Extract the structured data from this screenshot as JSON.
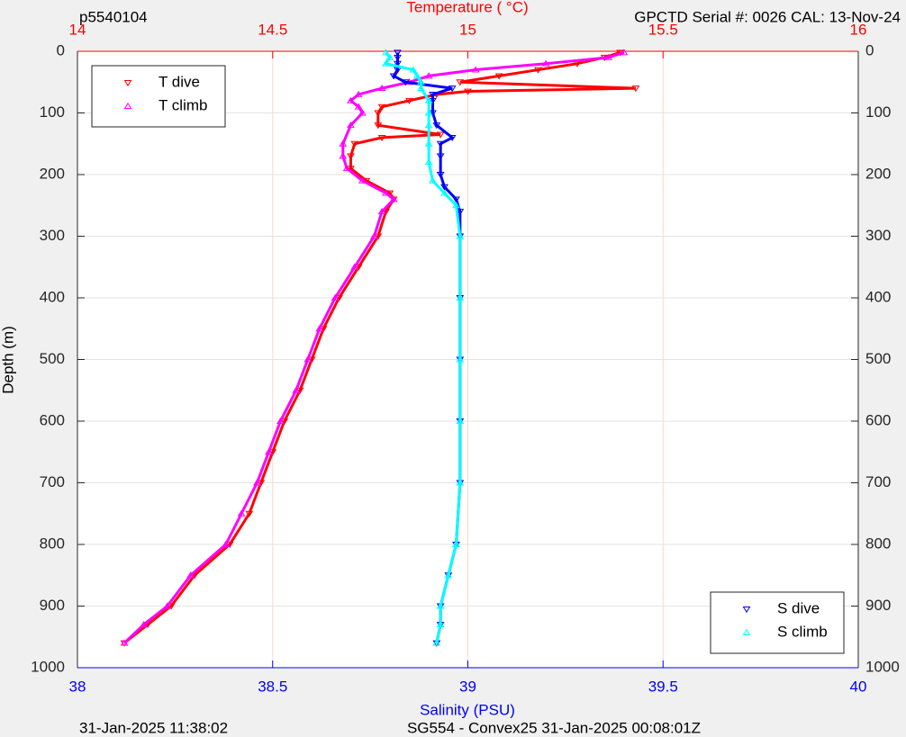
{
  "chart_data": {
    "type": "scatter",
    "title_left": "p5540104",
    "title_right": "GPCTD Serial #: 0026 CAL: 13-Nov-24",
    "x2_label": "Temperature (   °C)",
    "x_label": "Salinity (PSU)",
    "y_label": "Depth (m)",
    "footer_left": "31-Jan-2025 11:38:02",
    "footer_center": "SG554 - Convex25 31-Jan-2025 00:08:01Z",
    "xlim": [
      38,
      40
    ],
    "xticks": [
      38,
      38.5,
      39,
      39.5,
      40
    ],
    "x2lim": [
      14,
      16
    ],
    "x2ticks": [
      14,
      14.5,
      15,
      15.5,
      16
    ],
    "ylim": [
      0,
      1000
    ],
    "yticks": [
      0,
      100,
      200,
      300,
      400,
      500,
      600,
      700,
      800,
      900,
      1000
    ],
    "y_reversed": true,
    "grid": true,
    "x_axis_color": "#0000ff",
    "x2_axis_color": "#ff0000",
    "legend_x2": "northwest",
    "legend_x": "southeast",
    "series": [
      {
        "name": "T dive",
        "color": "#ff0000",
        "marker": "down",
        "axis": "x2",
        "y": [
          2,
          10,
          20,
          30,
          40,
          50,
          60,
          65,
          70,
          80,
          90,
          100,
          120,
          135,
          140,
          150,
          170,
          190,
          210,
          230,
          240,
          260,
          300,
          350,
          400,
          450,
          500,
          550,
          600,
          650,
          700,
          750,
          800,
          850,
          900,
          930,
          960
        ],
        "x": [
          15.39,
          15.35,
          15.28,
          15.18,
          15.08,
          14.98,
          15.43,
          15.0,
          14.92,
          14.85,
          14.78,
          14.77,
          14.77,
          14.93,
          14.78,
          14.71,
          14.7,
          14.7,
          14.74,
          14.8,
          14.81,
          14.79,
          14.77,
          14.72,
          14.67,
          14.63,
          14.6,
          14.57,
          14.53,
          14.5,
          14.47,
          14.44,
          14.39,
          14.3,
          14.24,
          14.18,
          14.12
        ]
      },
      {
        "name": "T climb",
        "color": "#ff00ff",
        "marker": "up",
        "axis": "x2",
        "y": [
          2,
          10,
          20,
          30,
          40,
          50,
          60,
          70,
          80,
          90,
          100,
          120,
          150,
          170,
          190,
          210,
          230,
          240,
          260,
          300,
          350,
          400,
          450,
          500,
          550,
          600,
          650,
          700,
          750,
          800,
          850,
          900,
          930,
          960
        ],
        "x": [
          15.4,
          15.36,
          15.2,
          15.02,
          14.9,
          14.85,
          14.78,
          14.72,
          14.7,
          14.72,
          14.73,
          14.7,
          14.68,
          14.68,
          14.69,
          14.73,
          14.79,
          14.81,
          14.78,
          14.76,
          14.71,
          14.66,
          14.62,
          14.59,
          14.56,
          14.52,
          14.49,
          14.46,
          14.42,
          14.38,
          14.29,
          14.23,
          14.17,
          14.12
        ]
      },
      {
        "name": "S dive",
        "color": "#0000ff",
        "marker": "down",
        "axis": "x",
        "y": [
          2,
          10,
          20,
          30,
          40,
          50,
          60,
          70,
          80,
          100,
          120,
          140,
          150,
          170,
          200,
          220,
          240,
          260,
          300,
          400,
          500,
          600,
          700,
          800,
          850,
          900,
          930,
          960
        ],
        "x": [
          38.82,
          38.82,
          38.82,
          38.82,
          38.81,
          38.84,
          38.96,
          38.91,
          38.91,
          38.91,
          38.92,
          38.96,
          38.93,
          38.93,
          38.93,
          38.94,
          38.97,
          38.98,
          38.98,
          38.98,
          38.98,
          38.98,
          38.98,
          38.97,
          38.95,
          38.93,
          38.93,
          38.92
        ]
      },
      {
        "name": "S climb",
        "color": "#00ffff",
        "marker": "up",
        "axis": "x",
        "y": [
          2,
          10,
          20,
          30,
          40,
          50,
          60,
          80,
          100,
          120,
          150,
          180,
          210,
          230,
          250,
          300,
          400,
          500,
          600,
          700,
          800,
          850,
          900,
          930,
          960
        ],
        "x": [
          38.79,
          38.8,
          38.79,
          38.86,
          38.87,
          38.88,
          38.88,
          38.9,
          38.9,
          38.9,
          38.9,
          38.9,
          38.91,
          38.94,
          38.97,
          38.98,
          38.98,
          38.98,
          38.98,
          38.98,
          38.97,
          38.95,
          38.93,
          38.93,
          38.92
        ]
      }
    ]
  }
}
